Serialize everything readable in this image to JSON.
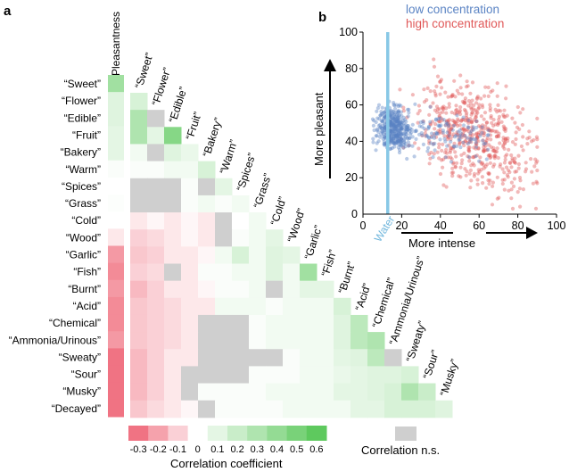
{
  "panel_a": {
    "letter": "a",
    "column_header": "Pleasantness",
    "descriptors": [
      "“Sweet”",
      "“Flower”",
      "“Edible”",
      "“Fruit”",
      "“Bakery”",
      "“Warm”",
      "“Spices”",
      "“Grass”",
      "“Cold”",
      "“Wood”",
      "“Garlic”",
      "“Fish”",
      "“Burnt”",
      "“Acid”",
      "“Chemical”",
      "“Ammonia/Urinous”",
      "“Sweaty”",
      "“Sour”",
      "“Musky”",
      "“Decayed”"
    ],
    "colorbar": {
      "ticks": [
        "-0.3",
        "-0.2",
        "-0.1",
        "0",
        "0.1",
        "0.2",
        "0.3",
        "0.4",
        "0.5",
        "0.6"
      ],
      "label": "Correlation coefficient",
      "ns_label": "Correlation n.s."
    }
  },
  "panel_b": {
    "letter": "b",
    "legend_low": "low concentration",
    "legend_high": "high concentration",
    "water_label": "Water",
    "x_arrow_label": "More intense",
    "y_arrow_label": "More pleasant"
  },
  "colors": {
    "positive": "#5ec95e",
    "negative": "#ee5c6e",
    "not_significant": "#cfcfcf",
    "low_concentration": "#5b84c4",
    "high_concentration": "#e05858",
    "water_line": "#88c8e6"
  },
  "chart_data": [
    {
      "type": "heatmap",
      "title": "",
      "colorbar_range": [
        -0.3,
        0.6
      ],
      "pleasantness_correlation": [
        0.35,
        0.12,
        0.12,
        0.1,
        0.1,
        0.02,
        0.0,
        0.01,
        0.0,
        -0.05,
        -0.22,
        -0.25,
        -0.22,
        -0.25,
        -0.25,
        -0.22,
        -0.3,
        -0.3,
        -0.3,
        -0.3
      ],
      "matrix_correlations": [
        [
          0.15
        ],
        [
          0.3,
          "ns"
        ],
        [
          0.3,
          0.1,
          0.45
        ],
        [
          0.05,
          "ns",
          0.12,
          0.08
        ],
        [
          0.02,
          0.02,
          0.05,
          0.05,
          0.15
        ],
        [
          "ns",
          "ns",
          "ns",
          0.02,
          "ns",
          0.1
        ],
        [
          "ns",
          "ns",
          "ns",
          0.02,
          0.05,
          0.02,
          0.05
        ],
        [
          -0.05,
          -0.02,
          -0.05,
          -0.02,
          -0.05,
          "ns",
          0.0,
          0.05
        ],
        [
          -0.1,
          -0.08,
          -0.05,
          -0.02,
          -0.05,
          "ns",
          0.02,
          0.05,
          0.1
        ],
        [
          -0.12,
          -0.1,
          -0.05,
          -0.05,
          -0.02,
          0.05,
          0.15,
          0.05,
          0.12,
          0.1
        ],
        [
          -0.1,
          -0.08,
          "ns",
          -0.05,
          0.02,
          0.02,
          0.05,
          0.05,
          0.12,
          0.05,
          0.35
        ],
        [
          -0.15,
          -0.1,
          -0.05,
          -0.05,
          -0.02,
          0.02,
          0.02,
          0.05,
          "ns",
          0.05,
          0.1,
          0.1
        ],
        [
          -0.12,
          -0.1,
          -0.08,
          -0.05,
          -0.05,
          0.05,
          0.05,
          0.05,
          0.02,
          0.05,
          0.05,
          0.05,
          0.15
        ],
        [
          -0.12,
          -0.1,
          -0.08,
          -0.05,
          "ns",
          "ns",
          "ns",
          0.02,
          0.05,
          0.05,
          0.05,
          0.05,
          0.12,
          0.25
        ],
        [
          -0.12,
          -0.1,
          -0.08,
          -0.05,
          "ns",
          "ns",
          "ns",
          0.02,
          0.05,
          0.05,
          0.05,
          0.05,
          0.12,
          0.25,
          0.3
        ],
        [
          -0.15,
          -0.1,
          -0.05,
          -0.05,
          "ns",
          "ns",
          "ns",
          "ns",
          "ns",
          0.02,
          0.05,
          0.05,
          0.1,
          0.12,
          0.25,
          "ns"
        ],
        [
          -0.15,
          -0.1,
          -0.05,
          "ns",
          "ns",
          "ns",
          "ns",
          0.02,
          0.02,
          0.02,
          0.05,
          0.05,
          0.08,
          0.1,
          0.12,
          0.12,
          0.15
        ],
        [
          -0.15,
          -0.1,
          -0.05,
          "ns",
          0.02,
          0.02,
          0.02,
          0.02,
          0.05,
          0.05,
          0.05,
          0.05,
          0.1,
          0.1,
          0.12,
          0.15,
          0.3,
          0.2
        ],
        [
          -0.12,
          -0.08,
          -0.05,
          -0.02,
          "ns",
          0.02,
          0.02,
          0.02,
          0.02,
          0.05,
          0.05,
          0.05,
          0.05,
          0.1,
          0.1,
          0.15,
          0.15,
          0.15,
          0.12
        ]
      ]
    },
    {
      "type": "scatter",
      "title": "",
      "xlabel": "More intense",
      "ylabel": "More pleasant",
      "xlim": [
        0,
        100
      ],
      "ylim": [
        0,
        100
      ],
      "xticks": [
        "0",
        "20",
        "40",
        "60",
        "80",
        "100"
      ],
      "yticks": [
        "0",
        "20",
        "40",
        "60",
        "80",
        "100"
      ],
      "water_x": 13,
      "series": [
        {
          "name": "low concentration",
          "n": 520,
          "x_range": [
            5,
            85
          ],
          "x_center": 16,
          "y_center": 47,
          "y_slope": -0.12,
          "spread_y": 8
        },
        {
          "name": "high concentration",
          "n": 560,
          "x_range": [
            5,
            90
          ],
          "x_center": 58,
          "y_center": 42,
          "y_slope": -0.35,
          "spread_y": 14
        }
      ]
    }
  ]
}
